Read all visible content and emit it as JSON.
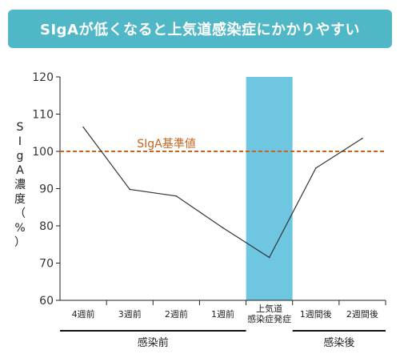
{
  "chart_data": {
    "type": "line",
    "title": "SIgAが低くなると上気道感染症にかかりやすい",
    "ylabel": "SIgA濃度（%）",
    "ylim": [
      60,
      120
    ],
    "yticks": [
      60,
      70,
      80,
      90,
      100,
      110,
      120
    ],
    "categories": [
      "4週前",
      "3週前",
      "2週前",
      "1週前",
      "上気道\n感染症発症",
      "1週間後",
      "2週間後"
    ],
    "series": [
      {
        "values": [
          106.5,
          89.8,
          88,
          79.5,
          71.5,
          95.5,
          103.5
        ]
      }
    ],
    "reference_line": {
      "label": "SIgA基準値",
      "value": 100,
      "color": "#c8641e"
    },
    "highlight": {
      "category": "上気道\n感染症発症",
      "color": "#6ec6e0"
    },
    "groups": [
      {
        "label": "感染前",
        "from": 0,
        "to": 3
      },
      {
        "label": "感染後",
        "from": 5,
        "to": 6
      }
    ],
    "grid": false
  },
  "colors": {
    "banner": "#4fb7c6",
    "line": "#333333",
    "highlight": "#6ec6e0",
    "reference": "#c8641e"
  }
}
